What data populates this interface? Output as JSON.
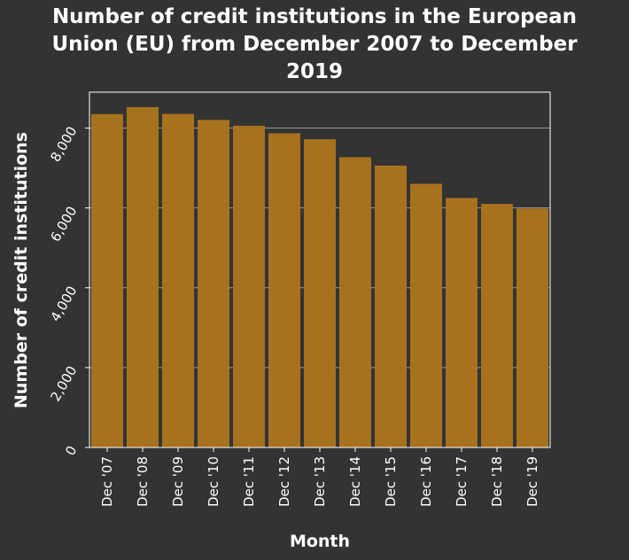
{
  "chart_data": {
    "type": "bar",
    "title_lines": [
      "Number of credit institutions in the European",
      "Union (EU) from December 2007 to December",
      "2019"
    ],
    "xlabel": "Month",
    "ylabel": "Number of credit institutions",
    "categories": [
      "Dec '07",
      "Dec '08",
      "Dec '09",
      "Dec '10",
      "Dec '11",
      "Dec '12",
      "Dec '13",
      "Dec '14",
      "Dec '15",
      "Dec '16",
      "Dec '17",
      "Dec '18",
      "Dec '19"
    ],
    "values": [
      8350,
      8525,
      8355,
      8205,
      8060,
      7870,
      7720,
      7270,
      7060,
      6605,
      6250,
      6100,
      5985
    ],
    "yticks": [
      0,
      2000,
      4000,
      6000,
      8000
    ],
    "ytick_labels": [
      "0",
      "2,000",
      "4,000",
      "6,000",
      "8,000"
    ],
    "ylim": [
      0,
      8900
    ],
    "grid": true,
    "legend": "none"
  },
  "colors": {
    "background": "#333333",
    "bar": "#a6721d",
    "grid": "#999999",
    "axis": "#ffffff",
    "text": "#ffffff"
  }
}
